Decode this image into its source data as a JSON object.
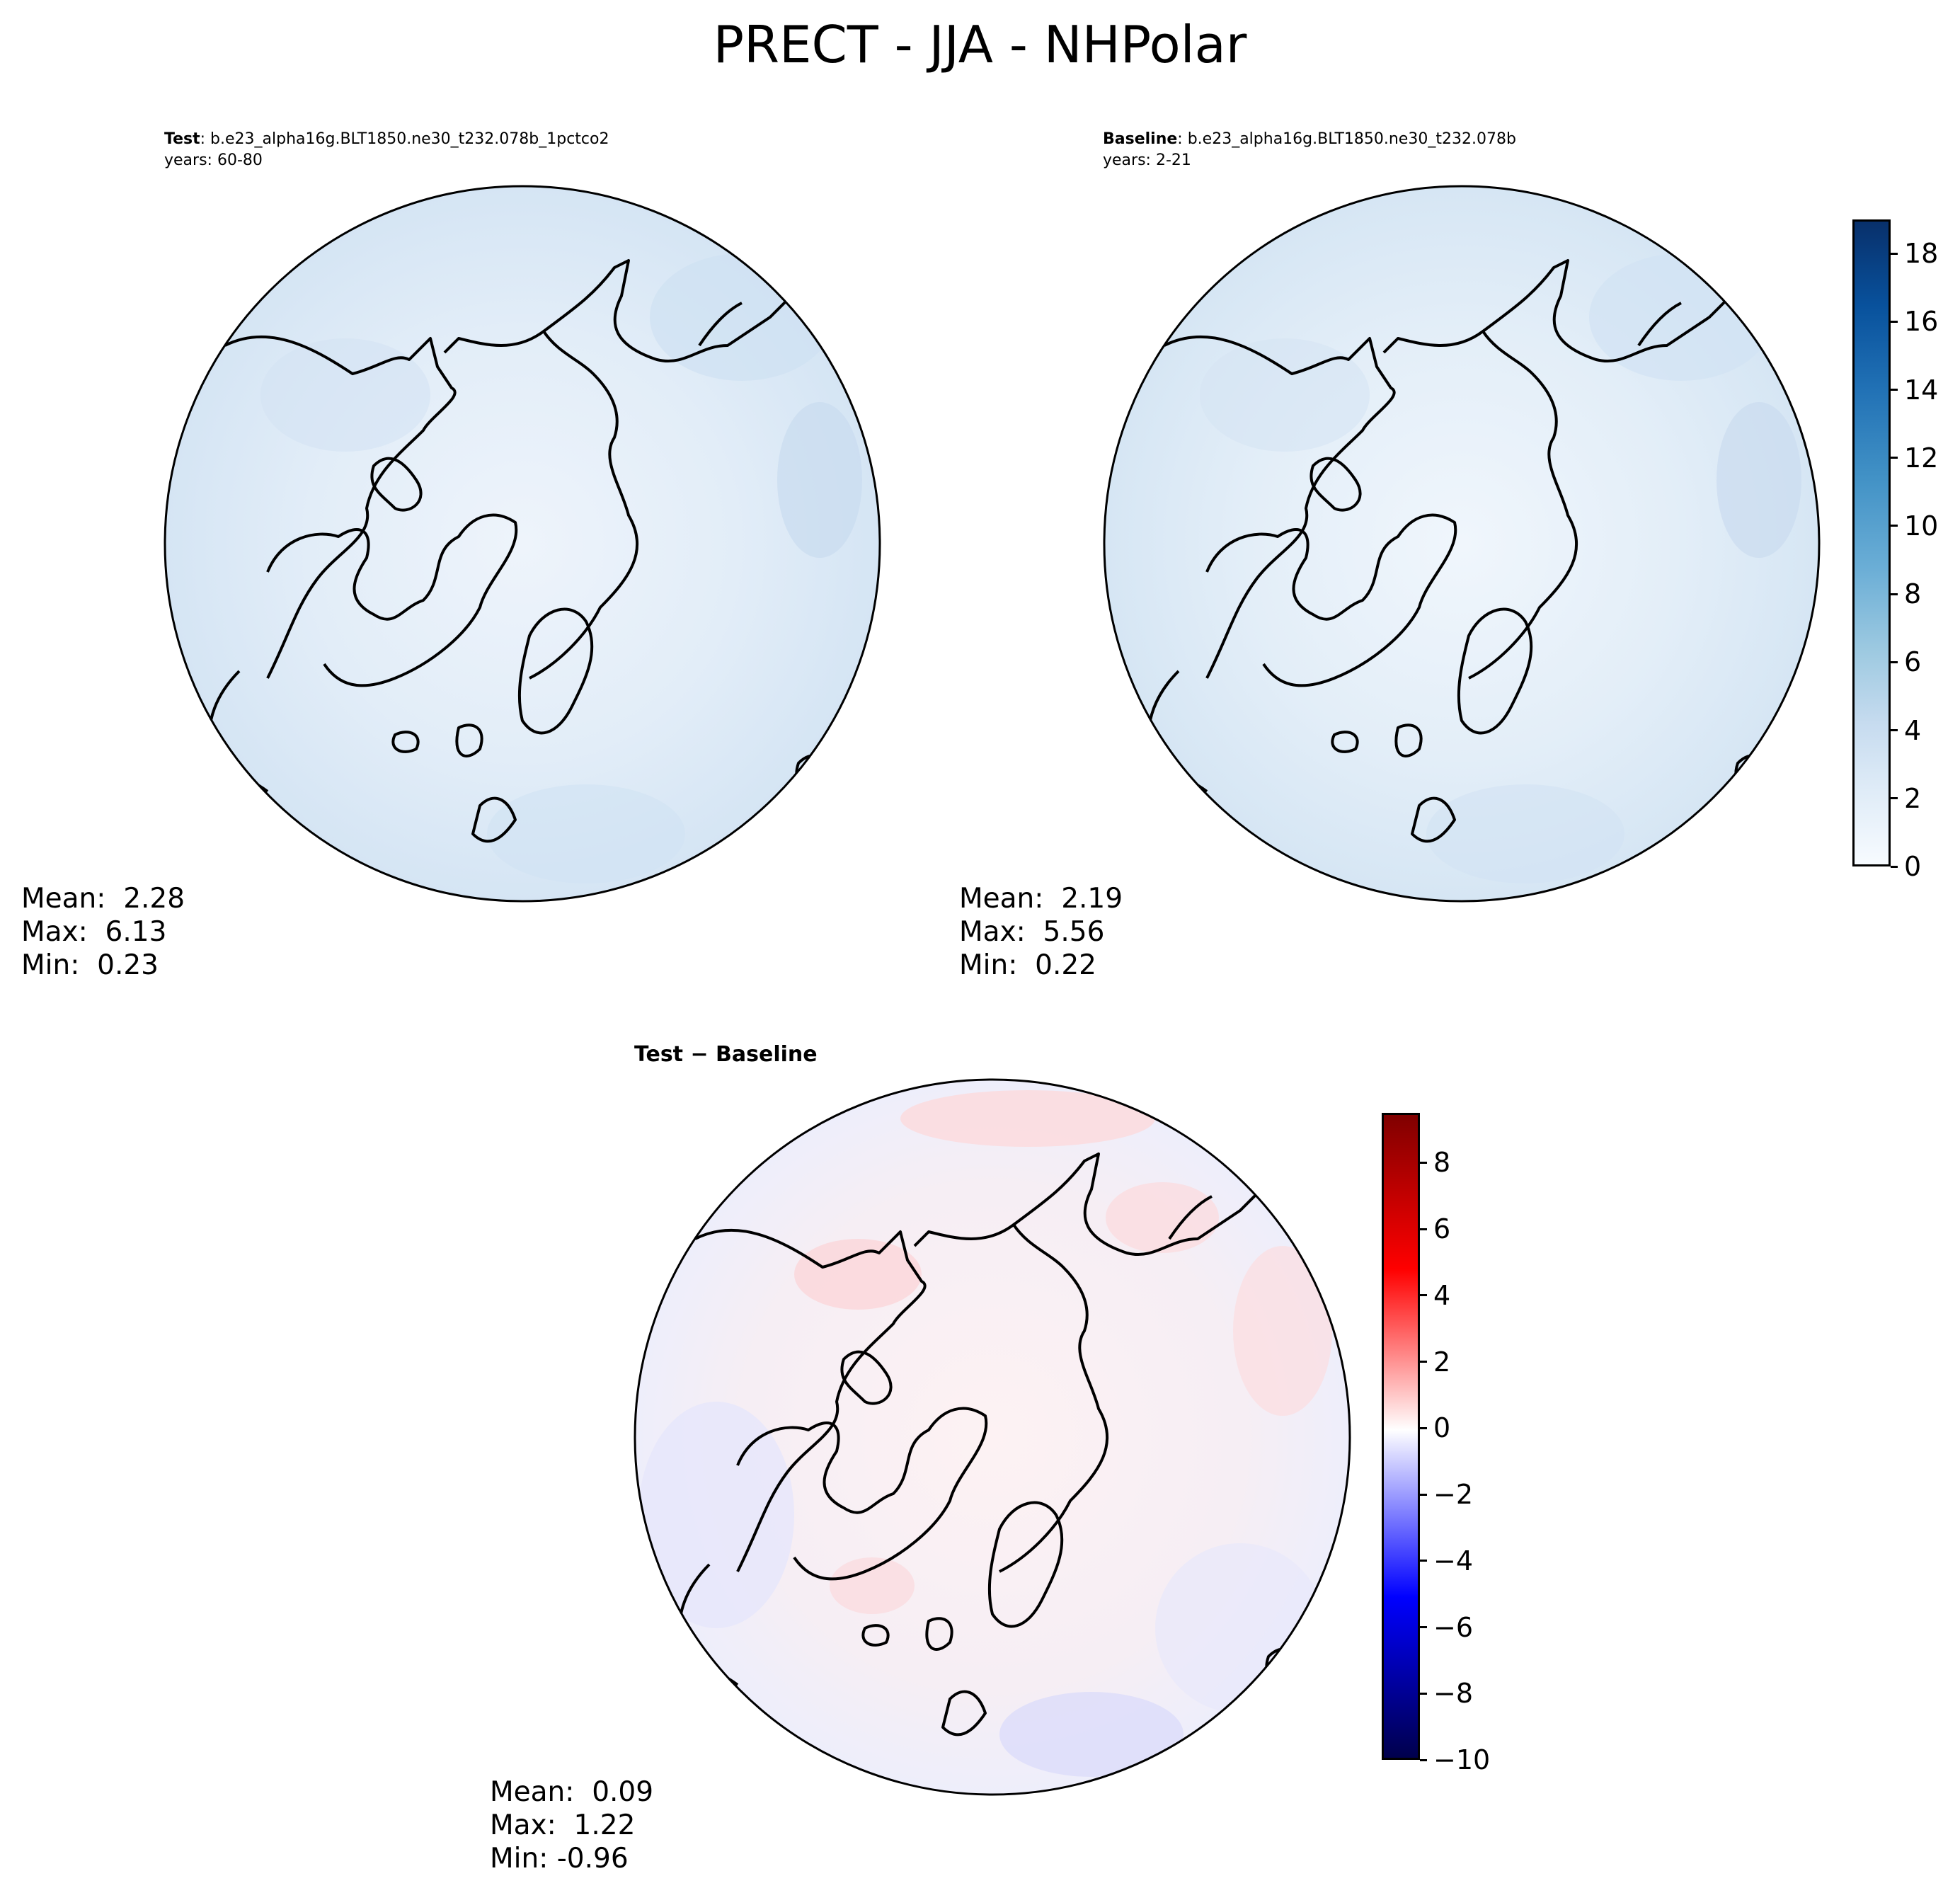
{
  "figure": {
    "title": "PRECT - JJA - NHPolar"
  },
  "panels": {
    "test": {
      "label_bold": "Test",
      "label_text": ": b.e23_alpha16g.BLT1850.ne30_t232.078b_1pctco2",
      "years": "years: 60-80",
      "stats": {
        "mean": "Mean:  2.28",
        "max": "Max:  6.13",
        "min": "Min:  0.23"
      }
    },
    "baseline": {
      "label_bold": "Baseline",
      "label_text": ": b.e23_alpha16g.BLT1850.ne30_t232.078b",
      "years": "years: 2-21",
      "stats": {
        "mean": "Mean:  2.19",
        "max": "Max:  5.56",
        "min": "Min:  0.22"
      }
    },
    "diff": {
      "title": "Test − Baseline",
      "stats": {
        "mean": "Mean:  0.09",
        "max": "Max:  1.22",
        "min": "Min: -0.96"
      }
    }
  },
  "colorbars": {
    "precip": {
      "ticks": [
        "0",
        "2",
        "4",
        "6",
        "8",
        "10",
        "12",
        "14",
        "16",
        "18"
      ],
      "tick_values": [
        0,
        2,
        4,
        6,
        8,
        10,
        12,
        14,
        16,
        18
      ],
      "vmin": 0,
      "vmax": 19,
      "colormap": "Blues",
      "colors": [
        "#f7fbff",
        "#deebf7",
        "#c6dbef",
        "#9ecae1",
        "#6baed6",
        "#4292c6",
        "#2171b5",
        "#08519c",
        "#08306b"
      ]
    },
    "diff": {
      "ticks": [
        "8",
        "6",
        "4",
        "2",
        "0",
        "−2",
        "−4",
        "−6",
        "−8",
        "−10"
      ],
      "tick_values": [
        8,
        6,
        4,
        2,
        0,
        -2,
        -4,
        -6,
        -8,
        -10
      ],
      "vmin": -10,
      "vmax": 9.5,
      "colormap": "seismic",
      "colors": [
        "#00004c",
        "#0000ff",
        "#ffffff",
        "#ff0000",
        "#800000"
      ]
    }
  },
  "map_fill": {
    "test": "#e4eef8",
    "baseline": "#e6eff9",
    "diff": "#fbeff1"
  }
}
